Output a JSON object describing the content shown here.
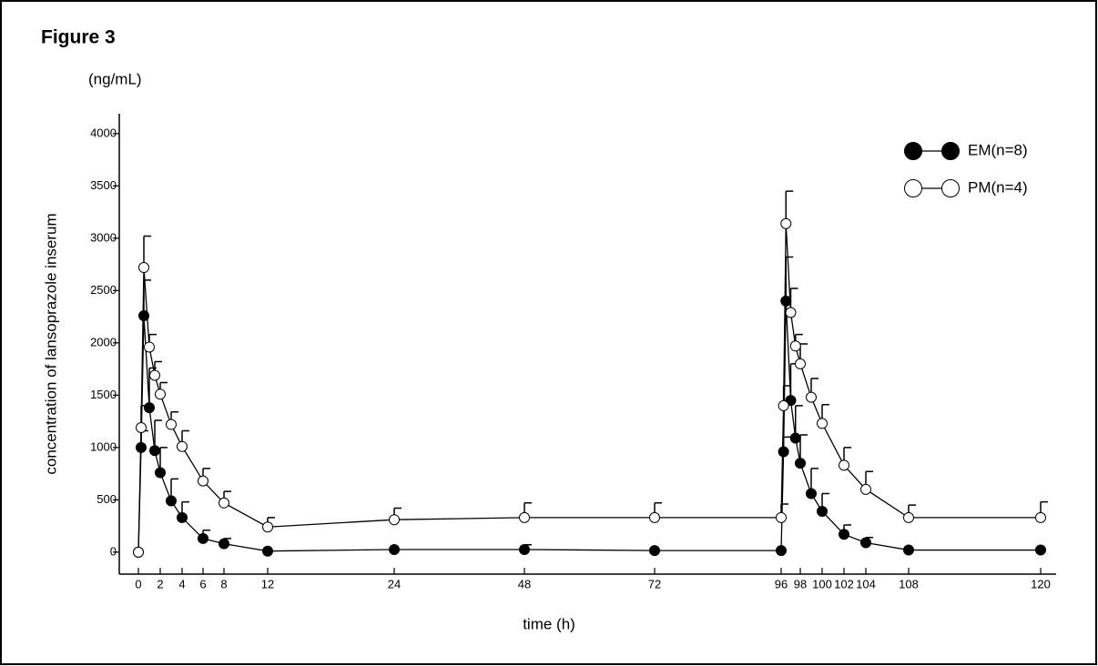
{
  "chart_data": {
    "type": "line",
    "title": "Figure 3",
    "y_unit": "(ng/mL)",
    "y_label": "concentration of lansoprazole inserum",
    "x_label": "time (h)",
    "xlim": [
      -1.75,
      121.4
    ],
    "xticks": [
      0,
      2,
      4,
      6,
      8,
      12,
      24,
      48,
      72,
      96,
      98,
      100,
      102,
      104,
      108,
      120
    ],
    "ylim": [
      -210,
      4190
    ],
    "yticks": [
      0,
      500,
      1000,
      1500,
      2000,
      2500,
      3000,
      3500,
      4000
    ],
    "legend": "upper right",
    "series": [
      {
        "name": "EM(n=8)",
        "color": "#000000",
        "marker": "filled",
        "x": [
          0,
          0.25,
          0.5,
          1,
          1.5,
          2,
          3,
          4,
          6,
          8,
          12,
          24,
          48,
          72,
          96,
          96.25,
          96.5,
          97,
          97.5,
          98,
          99,
          100,
          102,
          104,
          108,
          120
        ],
        "values": [
          0,
          1000,
          2260,
          1380,
          970,
          760,
          490,
          330,
          130,
          80,
          10,
          25,
          25,
          15,
          15,
          960,
          2400,
          1450,
          1090,
          850,
          560,
          390,
          170,
          90,
          20,
          20
        ],
        "errors": [
          null,
          160,
          340,
          380,
          290,
          240,
          210,
          150,
          80,
          50,
          null,
          null,
          45,
          null,
          null,
          140,
          420,
          350,
          310,
          270,
          240,
          170,
          90,
          50,
          null,
          null
        ]
      },
      {
        "name": "PM(n=4)",
        "color": "#ffffff",
        "marker": "open",
        "x": [
          0,
          0.25,
          0.5,
          1,
          1.5,
          2,
          3,
          4,
          6,
          8,
          12,
          24,
          48,
          72,
          96,
          96.25,
          96.5,
          97,
          97.5,
          98,
          99,
          100,
          102,
          104,
          108,
          120
        ],
        "values": [
          0,
          1190,
          2720,
          1960,
          1690,
          1510,
          1220,
          1010,
          680,
          470,
          240,
          310,
          330,
          330,
          330,
          1400,
          3140,
          2290,
          1970,
          1800,
          1480,
          1230,
          830,
          600,
          330,
          330
        ],
        "errors": [
          null,
          210,
          300,
          120,
          130,
          110,
          120,
          150,
          120,
          110,
          90,
          110,
          140,
          140,
          130,
          190,
          310,
          230,
          110,
          190,
          180,
          180,
          170,
          170,
          120,
          150
        ]
      }
    ]
  }
}
